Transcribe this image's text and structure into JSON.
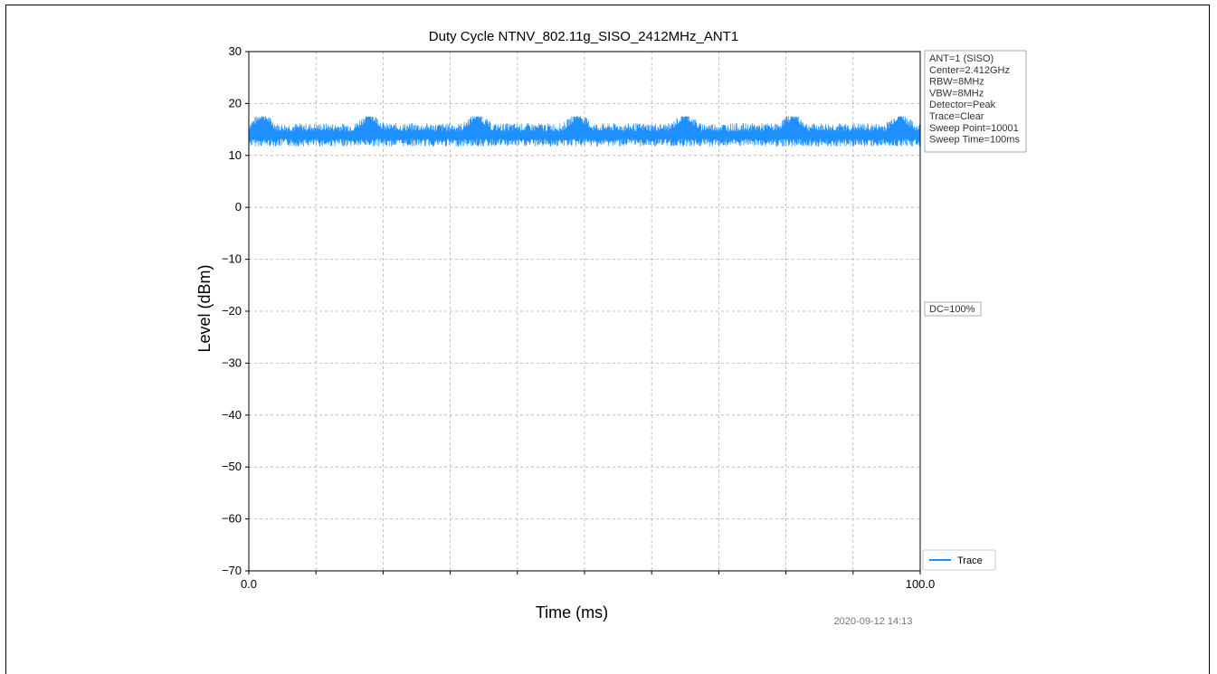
{
  "chart_data": {
    "type": "line",
    "title": "Duty Cycle NTNV_802.11g_SISO_2412MHz_ANT1",
    "xlabel": "Time (ms)",
    "ylabel": "Level (dBm)",
    "xlim": [
      0.0,
      100.0
    ],
    "ylim": [
      -70,
      30
    ],
    "x_tick_labels": [
      "0.0",
      "100.0"
    ],
    "y_ticks": [
      30,
      20,
      10,
      0,
      -10,
      -20,
      -30,
      -40,
      -50,
      -60,
      -70
    ],
    "y_tick_labels": [
      "30",
      "20",
      "10",
      "0",
      "−10",
      "−20",
      "−30",
      "−40",
      "−50",
      "−60",
      "−70"
    ],
    "x_grid_count": 10,
    "grid": true,
    "series": [
      {
        "name": "Trace",
        "color": "#1e90ff",
        "x_range": [
          0.0,
          100.0
        ],
        "approx_min": 11.5,
        "approx_max": 17.5,
        "approx_mean": 14.0,
        "bumps_at_ms": [
          2,
          18,
          34,
          49,
          65,
          81,
          97
        ]
      }
    ],
    "legend": {
      "position": "lower-right",
      "entries": [
        "Trace"
      ]
    },
    "info_box": [
      "ANT=1 (SISO)",
      "Center=2.412GHz",
      "RBW=8MHz",
      "VBW=8MHz",
      "Detector=Peak",
      "Trace=Clear",
      "Sweep Point=10001",
      "Sweep Time=100ms"
    ],
    "annotation": "DC=100%",
    "timestamp": "2020-09-12 14:13"
  }
}
